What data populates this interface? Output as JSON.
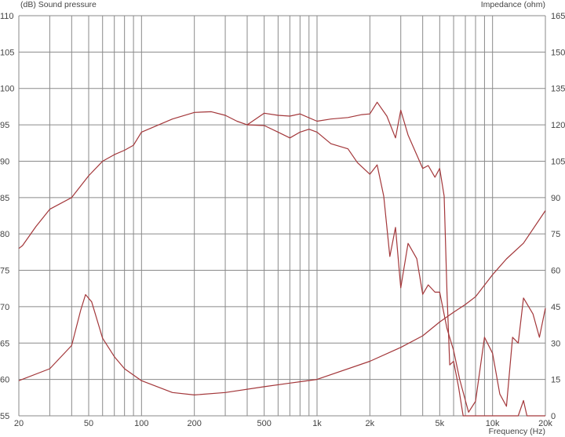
{
  "chart_data": {
    "type": "line",
    "title_left": "(dB)  Sound pressure",
    "title_right": "Impedance  (ohm)",
    "xlabel": "Frequency  (Hz)",
    "x_scale": "log",
    "xlim": [
      20,
      20000
    ],
    "ylim": [
      55,
      110
    ],
    "y2lim": [
      0,
      165
    ],
    "grid": true,
    "x_ticks": [
      {
        "v": 20,
        "label": "20"
      },
      {
        "v": 50,
        "label": "50"
      },
      {
        "v": 100,
        "label": "100"
      },
      {
        "v": 200,
        "label": "200"
      },
      {
        "v": 500,
        "label": "500"
      },
      {
        "v": 1000,
        "label": "1k"
      },
      {
        "v": 2000,
        "label": "2k"
      },
      {
        "v": 5000,
        "label": "5k"
      },
      {
        "v": 10000,
        "label": "10k"
      },
      {
        "v": 20000,
        "label": "20k"
      }
    ],
    "y_ticks": [
      "55",
      "60",
      "65",
      "70",
      "75",
      "80",
      "85",
      "90",
      "95",
      "100",
      "105",
      "110"
    ],
    "y2_ticks": [
      "0",
      "15",
      "30",
      "45",
      "60",
      "75",
      "90",
      "105",
      "120",
      "135",
      "150",
      "165"
    ],
    "line_color": "#a3373a",
    "series": [
      {
        "axis": "left",
        "points": [
          [
            20,
            78
          ],
          [
            21,
            78.4
          ],
          [
            25,
            81
          ],
          [
            30,
            83.4
          ],
          [
            40,
            85
          ],
          [
            50,
            88
          ],
          [
            60,
            90
          ],
          [
            70,
            90.9
          ],
          [
            80,
            91.5
          ],
          [
            90,
            92.2
          ],
          [
            100,
            94
          ],
          [
            150,
            95.8
          ],
          [
            200,
            96.7
          ],
          [
            250,
            96.8
          ],
          [
            300,
            96.3
          ],
          [
            350,
            95.5
          ],
          [
            400,
            95
          ],
          [
            500,
            96.6
          ],
          [
            600,
            96.3
          ],
          [
            700,
            96.2
          ],
          [
            800,
            96.5
          ],
          [
            1000,
            95.5
          ],
          [
            1200,
            95.8
          ],
          [
            1500,
            96
          ],
          [
            1800,
            96.4
          ],
          [
            2000,
            96.5
          ],
          [
            2200,
            98.1
          ],
          [
            2500,
            96.2
          ],
          [
            2800,
            93.2
          ],
          [
            3000,
            97
          ],
          [
            3300,
            93.6
          ],
          [
            4000,
            89
          ],
          [
            4300,
            89.4
          ],
          [
            4700,
            87.8
          ],
          [
            5000,
            89
          ],
          [
            5300,
            85.2
          ],
          [
            5500,
            72
          ],
          [
            5700,
            62
          ],
          [
            6000,
            62.5
          ],
          [
            6400,
            59
          ],
          [
            6800,
            55
          ],
          [
            14000,
            55
          ],
          [
            15000,
            57.1
          ],
          [
            15700,
            55
          ],
          [
            20000,
            55
          ]
        ]
      },
      {
        "axis": "left",
        "points": [
          [
            400,
            95
          ],
          [
            500,
            94.9
          ],
          [
            600,
            94
          ],
          [
            700,
            93.2
          ],
          [
            800,
            94
          ],
          [
            900,
            94.4
          ],
          [
            1000,
            94
          ],
          [
            1200,
            92.4
          ],
          [
            1500,
            91.7
          ],
          [
            1700,
            89.8
          ],
          [
            2000,
            88.2
          ],
          [
            2200,
            89.5
          ],
          [
            2400,
            85.2
          ],
          [
            2600,
            76.9
          ],
          [
            2800,
            80.9
          ],
          [
            3000,
            72.6
          ],
          [
            3300,
            78.7
          ],
          [
            3700,
            76.6
          ],
          [
            4000,
            71.7
          ],
          [
            4300,
            73
          ],
          [
            4700,
            72
          ],
          [
            5000,
            72
          ],
          [
            5500,
            67
          ],
          [
            6000,
            64
          ],
          [
            6500,
            60
          ],
          [
            7300,
            55.5
          ],
          [
            8000,
            57
          ],
          [
            9000,
            65.8
          ],
          [
            10000,
            63.6
          ],
          [
            11000,
            58
          ],
          [
            12000,
            56.3
          ],
          [
            13000,
            65.8
          ],
          [
            14000,
            65
          ],
          [
            15000,
            71.2
          ],
          [
            17000,
            69
          ],
          [
            18500,
            65.8
          ],
          [
            20000,
            69.8
          ]
        ]
      },
      {
        "axis": "right",
        "points": [
          [
            20,
            14.5
          ],
          [
            30,
            19.4
          ],
          [
            40,
            29
          ],
          [
            45,
            43.5
          ],
          [
            48,
            50
          ],
          [
            52,
            47
          ],
          [
            60,
            32
          ],
          [
            70,
            24.4
          ],
          [
            80,
            19.4
          ],
          [
            100,
            14.5
          ],
          [
            150,
            9.6
          ],
          [
            200,
            8.6
          ],
          [
            300,
            9.6
          ],
          [
            500,
            12
          ],
          [
            700,
            13.5
          ],
          [
            1000,
            15
          ],
          [
            2000,
            22.5
          ],
          [
            3000,
            28.2
          ],
          [
            4000,
            33
          ],
          [
            5000,
            38.7
          ],
          [
            6000,
            42.7
          ],
          [
            7000,
            45.9
          ],
          [
            8000,
            49.1
          ],
          [
            10000,
            58.2
          ],
          [
            12000,
            64.7
          ],
          [
            15000,
            71.2
          ],
          [
            20000,
            84.6
          ]
        ]
      }
    ]
  }
}
